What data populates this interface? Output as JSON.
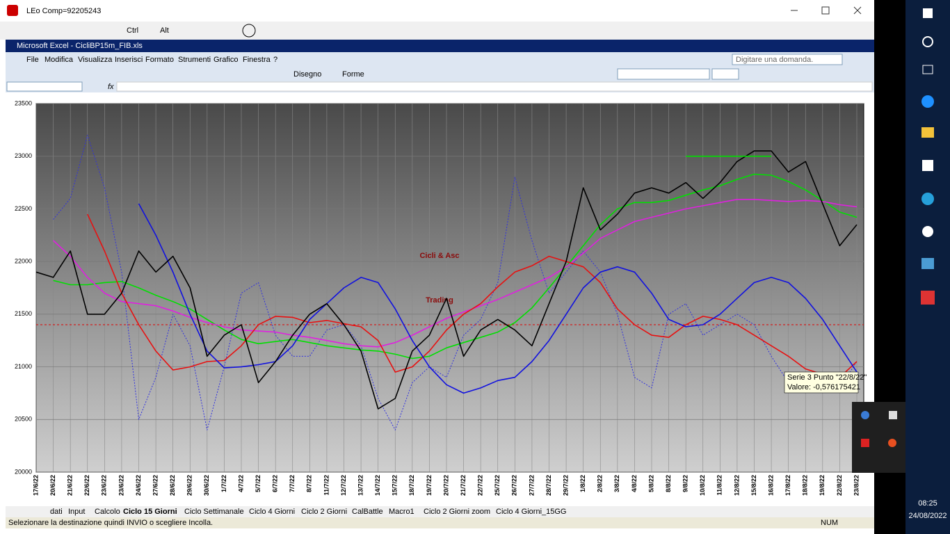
{
  "window": {
    "title": "LEo Comp=92205243",
    "ctrl": "Ctrl",
    "alt": "Alt"
  },
  "excel": {
    "title": "Microsoft Excel - CicliBP15m_FIB.xls",
    "menu": [
      "File",
      "Modifica",
      "Visualizza",
      "Inserisci",
      "Formato",
      "Strumenti",
      "Grafico",
      "Finestra",
      "?"
    ],
    "help_box": "Digitare una domanda.",
    "drawing": "Disegno",
    "shapes": "Forme",
    "fx": "fx"
  },
  "chart_data": {
    "type": "line",
    "annotations": [
      "Cicli & Asc",
      "Trading"
    ],
    "tooltip": [
      "Serie 3 Punto \"22/8/22\"",
      "Valore: -0,576175421"
    ],
    "categories": [
      "17/6/22",
      "20/6/22",
      "21/6/22",
      "22/6/22",
      "23/6/22",
      "23/6/22",
      "24/6/22",
      "27/6/22",
      "28/6/22",
      "29/6/22",
      "30/6/22",
      "1/7/22",
      "4/7/22",
      "5/7/22",
      "6/7/22",
      "7/7/22",
      "8/7/22",
      "11/7/22",
      "12/7/22",
      "13/7/22",
      "14/7/22",
      "15/7/22",
      "18/7/22",
      "19/7/22",
      "20/7/22",
      "21/7/22",
      "22/7/22",
      "25/7/22",
      "26/7/22",
      "27/7/22",
      "28/7/22",
      "29/7/22",
      "1/8/22",
      "2/8/22",
      "3/8/22",
      "4/8/22",
      "5/8/22",
      "8/8/22",
      "9/8/22",
      "10/8/22",
      "11/8/22",
      "12/8/22",
      "15/8/22",
      "16/8/22",
      "17/8/22",
      "18/8/22",
      "19/8/22",
      "22/8/22",
      "23/8/22"
    ],
    "series": [
      {
        "color": "#3030e0",
        "style": "dotted",
        "values": [
          null,
          22400,
          22600,
          23200,
          22700,
          21900,
          20500,
          20900,
          21500,
          21200,
          20400,
          21000,
          21700,
          21800,
          21300,
          21100,
          21100,
          21350,
          21400,
          21200,
          20700,
          20400,
          20850,
          21000,
          20900,
          21300,
          21450,
          21800,
          22800,
          22200,
          21700,
          21900,
          22100,
          21900,
          21500,
          20900,
          20800,
          21500,
          21600,
          21300,
          21400,
          21500,
          21400,
          21100,
          20850,
          20950,
          20900,
          20800,
          21050
        ]
      },
      {
        "color": "#00e000",
        "style": "solid",
        "values": [
          null,
          21820,
          21780,
          21780,
          21800,
          21810,
          21750,
          21680,
          21620,
          21550,
          21450,
          21350,
          21260,
          21220,
          21240,
          21260,
          21230,
          21200,
          21180,
          21160,
          21150,
          21120,
          21080,
          21100,
          21180,
          21230,
          21280,
          21330,
          21420,
          21560,
          21750,
          21950,
          22150,
          22350,
          22500,
          22560,
          22560,
          22580,
          22630,
          22680,
          22720,
          22780,
          22830,
          22820,
          22760,
          22680,
          22580,
          22470,
          22420
        ]
      },
      {
        "color": "#e020e0",
        "style": "solid",
        "values": [
          null,
          22200,
          22050,
          21850,
          21700,
          21620,
          21600,
          21580,
          21530,
          21470,
          21420,
          21380,
          21350,
          21340,
          21330,
          21300,
          21280,
          21250,
          21220,
          21200,
          21190,
          21230,
          21300,
          21380,
          21460,
          21520,
          21580,
          21640,
          21710,
          21780,
          21850,
          21950,
          22080,
          22220,
          22300,
          22380,
          22420,
          22460,
          22500,
          22530,
          22560,
          22590,
          22590,
          22580,
          22570,
          22580,
          22570,
          22540,
          22520
        ]
      },
      {
        "color": "#e81010",
        "style": "solid",
        "values": [
          null,
          null,
          null,
          22450,
          22100,
          21700,
          21400,
          21150,
          20970,
          21000,
          21050,
          21060,
          21200,
          21400,
          21480,
          21470,
          21420,
          21440,
          21410,
          21380,
          21250,
          20950,
          21000,
          21150,
          21350,
          21500,
          21600,
          21760,
          21900,
          21960,
          22050,
          22000,
          21950,
          21800,
          21550,
          21400,
          21300,
          21280,
          21400,
          21480,
          21450,
          21400,
          21300,
          21200,
          21100,
          20980,
          20930,
          20900,
          21050
        ]
      },
      {
        "color": "#1010e0",
        "style": "solid",
        "values": [
          null,
          null,
          null,
          null,
          null,
          null,
          22550,
          22250,
          21900,
          21500,
          21150,
          20990,
          21000,
          21020,
          21050,
          21200,
          21450,
          21600,
          21750,
          21850,
          21800,
          21550,
          21250,
          21000,
          20830,
          20750,
          20800,
          20870,
          20900,
          21050,
          21250,
          21500,
          21750,
          21900,
          21950,
          21900,
          21700,
          21450,
          21380,
          21400,
          21500,
          21650,
          21800,
          21850,
          21800,
          21650,
          21450,
          21200,
          20950
        ]
      },
      {
        "color": "#000000",
        "style": "solid",
        "values": [
          21900,
          21850,
          22100,
          21500,
          21500,
          21700,
          22100,
          21900,
          22050,
          21750,
          21100,
          21300,
          21400,
          20850,
          21050,
          21300,
          21500,
          21600,
          21400,
          21150,
          20600,
          20700,
          21150,
          21300,
          21650,
          21100,
          21350,
          21450,
          21350,
          21200,
          21600,
          22000,
          22700,
          22300,
          22450,
          22650,
          22700,
          22650,
          22750,
          22600,
          22750,
          22950,
          23050,
          23050,
          22850,
          22950,
          22550,
          22150,
          22350
        ]
      },
      {
        "color": "#00e000",
        "style": "solid",
        "values": [
          null,
          null,
          null,
          null,
          null,
          null,
          null,
          null,
          null,
          null,
          null,
          null,
          null,
          null,
          null,
          null,
          null,
          null,
          null,
          null,
          null,
          null,
          null,
          null,
          null,
          null,
          null,
          null,
          null,
          null,
          null,
          null,
          null,
          null,
          null,
          null,
          null,
          null,
          23000,
          23000,
          23000,
          23000,
          23000,
          23000,
          null,
          null,
          null,
          null,
          null
        ]
      }
    ],
    "hlines": [
      {
        "value": 21400,
        "color": "#e00000"
      }
    ],
    "ylim": [
      20000,
      23500
    ],
    "yticks": [
      20000,
      20500,
      21000,
      21500,
      22000,
      22500,
      23000,
      23500
    ],
    "grid": true
  },
  "sheet_tabs": [
    "dati",
    "Input",
    "Calcolo",
    "Ciclo 15 Giorni",
    "Ciclo Settimanale",
    "Ciclo 4 Giorni",
    "Ciclo 2 Giorni",
    "CalBattle",
    "Macro1",
    "Ciclo 2 Giorni zoom",
    "Ciclo 4 Giorni_15GG"
  ],
  "active_tab": 3,
  "status": {
    "message": "Selezionare la destinazione quindi INVIO o scegliere Incolla.",
    "num": "NUM"
  },
  "taskbar": {
    "time": "08:25",
    "date": "24/08/2022"
  }
}
